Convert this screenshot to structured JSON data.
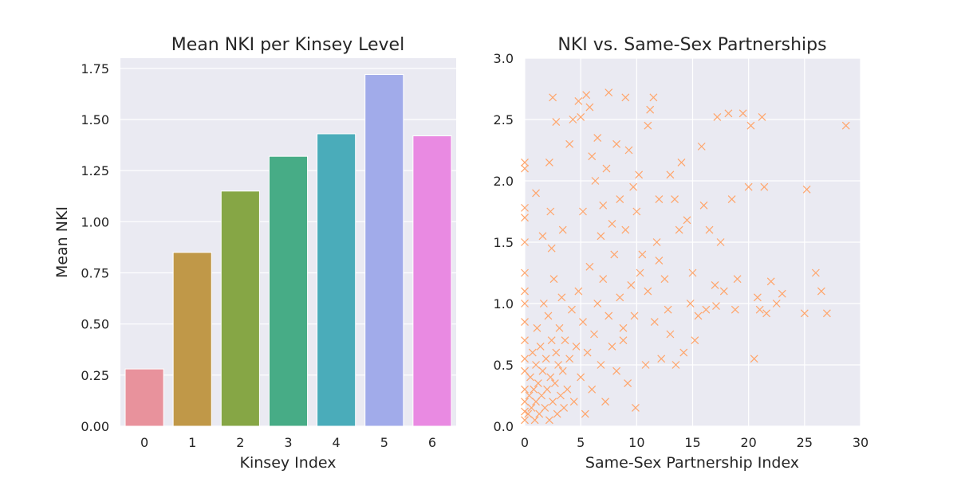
{
  "colors": {
    "panel_bg": "#eaeaf2",
    "scatter": "#ffa56b",
    "bars": [
      "#e8929c",
      "#c09848",
      "#86a645",
      "#47ac86",
      "#4aacba",
      "#a1abea",
      "#e98ae2"
    ]
  },
  "chart_data": [
    {
      "type": "bar",
      "title": "Mean NKI per Kinsey Level",
      "xlabel": "Kinsey Index",
      "ylabel": "Mean NKI",
      "categories": [
        "0",
        "1",
        "2",
        "3",
        "4",
        "5",
        "6"
      ],
      "values": [
        0.28,
        0.85,
        1.15,
        1.32,
        1.43,
        1.72,
        1.42
      ],
      "ylim": [
        0,
        1.8
      ],
      "yticks": [
        "0.00",
        "0.25",
        "0.50",
        "0.75",
        "1.00",
        "1.25",
        "1.50",
        "1.75"
      ],
      "grid": true
    },
    {
      "type": "scatter",
      "title": "NKI vs. Same-Sex Partnerships",
      "xlabel": "Same-Sex Partnership Index",
      "ylabel": "",
      "marker": "x",
      "xlim": [
        0,
        30
      ],
      "ylim": [
        0,
        3.0
      ],
      "xticks": [
        "0",
        "5",
        "10",
        "15",
        "20",
        "25",
        "30"
      ],
      "yticks": [
        "0.0",
        "0.5",
        "1.0",
        "1.5",
        "2.0",
        "2.5",
        "3.0"
      ],
      "grid": true,
      "points": [
        [
          0.0,
          0.05
        ],
        [
          0.0,
          0.12
        ],
        [
          0.0,
          0.2
        ],
        [
          0.0,
          0.3
        ],
        [
          0.0,
          0.45
        ],
        [
          0.0,
          0.55
        ],
        [
          0.0,
          0.7
        ],
        [
          0.0,
          0.85
        ],
        [
          0.0,
          1.0
        ],
        [
          0.0,
          1.1
        ],
        [
          0.0,
          1.25
        ],
        [
          0.0,
          1.5
        ],
        [
          0.0,
          1.7
        ],
        [
          0.0,
          1.78
        ],
        [
          0.0,
          2.1
        ],
        [
          0.0,
          2.15
        ],
        [
          0.3,
          0.1
        ],
        [
          0.4,
          0.25
        ],
        [
          0.5,
          0.4
        ],
        [
          0.6,
          0.15
        ],
        [
          0.7,
          0.6
        ],
        [
          0.8,
          0.3
        ],
        [
          0.9,
          0.05
        ],
        [
          1.0,
          0.2
        ],
        [
          1.0,
          0.5
        ],
        [
          1.1,
          0.8
        ],
        [
          1.2,
          0.35
        ],
        [
          1.3,
          0.1
        ],
        [
          1.4,
          0.65
        ],
        [
          1.5,
          0.25
        ],
        [
          1.6,
          0.45
        ],
        [
          1.7,
          1.0
        ],
        [
          1.8,
          0.15
        ],
        [
          1.9,
          0.55
        ],
        [
          2.0,
          0.3
        ],
        [
          2.1,
          0.9
        ],
        [
          2.2,
          0.05
        ],
        [
          2.3,
          0.4
        ],
        [
          2.4,
          0.7
        ],
        [
          2.5,
          0.2
        ],
        [
          2.6,
          1.2
        ],
        [
          2.7,
          0.35
        ],
        [
          2.8,
          0.6
        ],
        [
          2.9,
          0.1
        ],
        [
          3.0,
          0.5
        ],
        [
          3.1,
          0.8
        ],
        [
          3.2,
          0.25
        ],
        [
          3.3,
          1.05
        ],
        [
          3.4,
          0.45
        ],
        [
          3.5,
          0.15
        ],
        [
          3.6,
          0.7
        ],
        [
          3.8,
          0.3
        ],
        [
          4.0,
          0.55
        ],
        [
          4.2,
          0.95
        ],
        [
          4.4,
          0.2
        ],
        [
          4.6,
          0.65
        ],
        [
          4.8,
          1.1
        ],
        [
          5.0,
          0.4
        ],
        [
          5.2,
          0.85
        ],
        [
          5.4,
          0.1
        ],
        [
          5.6,
          0.6
        ],
        [
          5.8,
          1.3
        ],
        [
          6.0,
          0.3
        ],
        [
          6.2,
          0.75
        ],
        [
          6.5,
          1.0
        ],
        [
          6.8,
          0.5
        ],
        [
          7.0,
          1.2
        ],
        [
          7.2,
          0.2
        ],
        [
          7.5,
          0.9
        ],
        [
          7.8,
          0.65
        ],
        [
          8.0,
          1.4
        ],
        [
          8.2,
          0.45
        ],
        [
          8.5,
          1.05
        ],
        [
          8.8,
          0.8
        ],
        [
          9.0,
          1.6
        ],
        [
          9.2,
          0.35
        ],
        [
          9.5,
          1.15
        ],
        [
          9.8,
          0.9
        ],
        [
          10.0,
          1.75
        ],
        [
          1.0,
          1.9
        ],
        [
          1.6,
          1.55
        ],
        [
          2.2,
          2.15
        ],
        [
          2.3,
          1.75
        ],
        [
          2.4,
          1.45
        ],
        [
          2.5,
          2.68
        ],
        [
          2.8,
          2.48
        ],
        [
          3.4,
          1.6
        ],
        [
          4.0,
          2.3
        ],
        [
          4.3,
          2.5
        ],
        [
          4.8,
          2.65
        ],
        [
          5.0,
          2.52
        ],
        [
          5.2,
          1.75
        ],
        [
          5.5,
          2.7
        ],
        [
          5.8,
          2.6
        ],
        [
          6.0,
          2.2
        ],
        [
          6.3,
          2.0
        ],
        [
          6.5,
          2.35
        ],
        [
          6.8,
          1.55
        ],
        [
          7.0,
          1.8
        ],
        [
          7.3,
          2.1
        ],
        [
          7.5,
          2.72
        ],
        [
          7.8,
          1.65
        ],
        [
          8.2,
          2.3
        ],
        [
          8.5,
          1.85
        ],
        [
          9.0,
          2.68
        ],
        [
          9.3,
          2.25
        ],
        [
          9.7,
          1.95
        ],
        [
          10.2,
          2.05
        ],
        [
          10.5,
          1.4
        ],
        [
          11.0,
          2.45
        ],
        [
          11.2,
          2.58
        ],
        [
          11.5,
          2.68
        ],
        [
          11.8,
          1.5
        ],
        [
          12.0,
          1.85
        ],
        [
          12.5,
          1.2
        ],
        [
          13.0,
          2.05
        ],
        [
          13.4,
          1.85
        ],
        [
          13.8,
          1.6
        ],
        [
          14.0,
          2.15
        ],
        [
          14.5,
          1.68
        ],
        [
          15.0,
          1.25
        ],
        [
          15.2,
          0.7
        ],
        [
          15.5,
          0.9
        ],
        [
          15.8,
          2.28
        ],
        [
          16.0,
          1.8
        ],
        [
          16.5,
          1.6
        ],
        [
          17.0,
          1.15
        ],
        [
          17.2,
          2.52
        ],
        [
          17.5,
          1.5
        ],
        [
          17.8,
          1.1
        ],
        [
          18.2,
          2.55
        ],
        [
          18.5,
          1.85
        ],
        [
          18.8,
          0.95
        ],
        [
          19.0,
          1.2
        ],
        [
          19.5,
          2.55
        ],
        [
          20.0,
          1.95
        ],
        [
          20.2,
          2.45
        ],
        [
          20.5,
          0.55
        ],
        [
          20.8,
          1.05
        ],
        [
          21.0,
          0.95
        ],
        [
          21.2,
          2.52
        ],
        [
          21.4,
          1.95
        ],
        [
          21.6,
          0.92
        ],
        [
          22.0,
          1.18
        ],
        [
          22.5,
          1.0
        ],
        [
          23.0,
          1.08
        ],
        [
          25.0,
          0.92
        ],
        [
          25.2,
          1.93
        ],
        [
          26.0,
          1.25
        ],
        [
          26.5,
          1.1
        ],
        [
          27.0,
          0.92
        ],
        [
          28.7,
          2.45
        ],
        [
          8.8,
          0.7
        ],
        [
          9.9,
          0.15
        ],
        [
          10.8,
          0.5
        ],
        [
          11.6,
          0.85
        ],
        [
          12.2,
          0.55
        ],
        [
          12.8,
          0.95
        ],
        [
          13.5,
          0.5
        ],
        [
          14.2,
          0.6
        ],
        [
          13.0,
          0.75
        ],
        [
          11.0,
          1.1
        ],
        [
          10.3,
          1.25
        ],
        [
          12.0,
          1.35
        ],
        [
          14.8,
          1.0
        ],
        [
          16.2,
          0.95
        ],
        [
          17.1,
          0.98
        ]
      ]
    }
  ]
}
